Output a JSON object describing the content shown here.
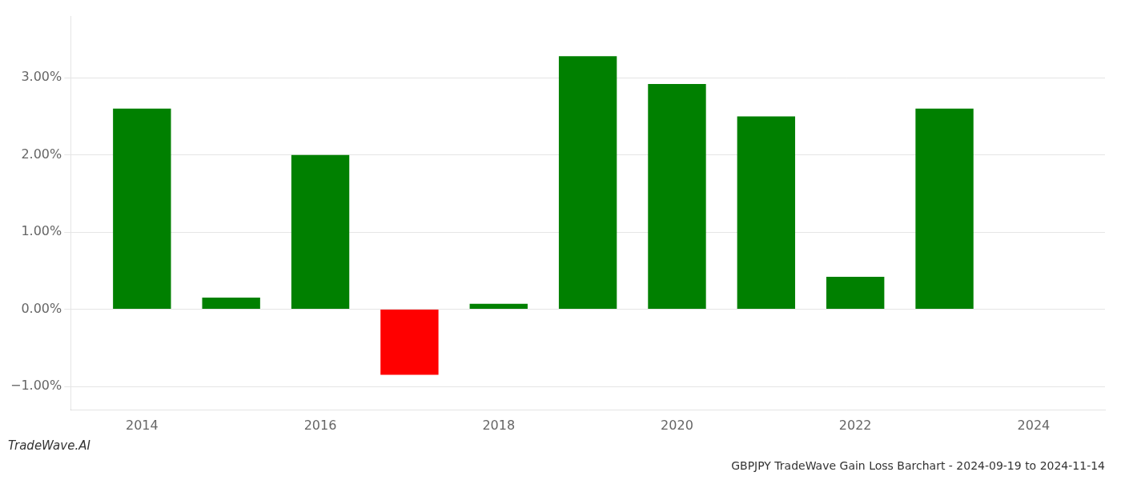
{
  "chart_data": {
    "type": "bar",
    "title": "GBPJPY TradeWave Gain Loss Barchart - 2024-09-19 to 2024-11-14",
    "annotations": [
      "TradeWave.AI"
    ],
    "x": [
      2014,
      2015,
      2016,
      2017,
      2018,
      2019,
      2020,
      2021,
      2022,
      2023
    ],
    "values": [
      0.026,
      0.0015,
      0.02,
      -0.0085,
      0.0007,
      0.0328,
      0.0292,
      0.025,
      0.0042,
      0.026
    ],
    "colors": [
      "#008000",
      "#008000",
      "#008000",
      "#ff0000",
      "#008000",
      "#008000",
      "#008000",
      "#008000",
      "#008000",
      "#008000"
    ],
    "xlim": [
      2013.2,
      2024.8
    ],
    "xticks": [
      2014,
      2016,
      2018,
      2020,
      2022,
      2024
    ],
    "ylim": [
      -0.013,
      0.038
    ],
    "yticks": [
      {
        "value": -0.01,
        "label": "−1.00%"
      },
      {
        "value": 0.0,
        "label": "0.00%"
      },
      {
        "value": 0.01,
        "label": "1.00%"
      },
      {
        "value": 0.02,
        "label": "2.00%"
      },
      {
        "value": 0.03,
        "label": "3.00%"
      }
    ],
    "grid": true
  }
}
